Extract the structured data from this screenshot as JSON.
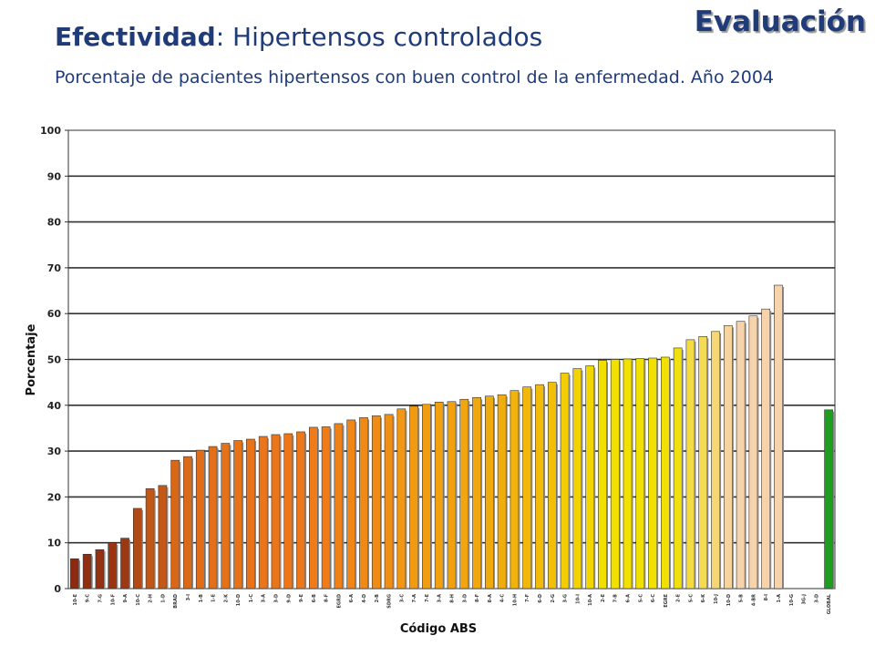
{
  "header": {
    "corner_label": "Evaluación",
    "title_bold": "Efectividad",
    "title_rest": ": Hipertensos controlados",
    "subtitle": "Porcentaje de pacientes hipertensos con buen control de la enfermedad. Año 2004"
  },
  "colors": {
    "title": "#1f3b7a",
    "gradient_start": "#8b2a12",
    "gradient_mid_orange": "#f07a1a",
    "gradient_yellow": "#f2e000",
    "gradient_end_peach": "#f7d3ac",
    "global_bar": "#1f9d1f"
  },
  "chart_data": {
    "type": "bar",
    "xlabel": "Código ABS",
    "ylabel": "Porcentaje",
    "ylim": [
      0,
      100
    ],
    "yticks": [
      "0",
      "10",
      "20",
      "30",
      "40",
      "50",
      "60",
      "70",
      "80",
      "90",
      "100"
    ],
    "grid": true,
    "categories": [
      "10-E",
      "9-C",
      "7-G",
      "10-F",
      "9-A",
      "10-C",
      "2-H",
      "1-D",
      "BRAD",
      "3-I",
      "1-B",
      "1-E",
      "2-K",
      "10-D",
      "1-C",
      "3-A",
      "3-D",
      "9-D",
      "9-E",
      "6-B",
      "8-F",
      "EGRD",
      "6-A",
      "4-D",
      "2-B",
      "SDRG",
      "3-C",
      "7-A",
      "7-E",
      "3-A",
      "8-H",
      "3-D",
      "8-F",
      "8-A",
      "4-C",
      "10-H",
      "7-F",
      "6-D",
      "2-G",
      "3-G",
      "10-I",
      "10-A",
      "2-E",
      "7-B",
      "6-A",
      "5-C",
      "6-C",
      "EGRE",
      "2-E",
      "5-C",
      "6-K",
      "10-J",
      "10-D",
      "5-B",
      "4-BR",
      "8-I",
      "1-A",
      "10-G",
      "3G-J",
      "3-D",
      "GLOBAL"
    ],
    "values": [
      6.5,
      7.5,
      8.5,
      10,
      11,
      17.5,
      21.8,
      22.5,
      28,
      28.8,
      30.2,
      31,
      31.7,
      32.3,
      32.6,
      33.2,
      33.6,
      33.8,
      34.2,
      35.2,
      35.3,
      36,
      36.8,
      37.3,
      37.7,
      38,
      39.2,
      39.8,
      40.2,
      40.7,
      40.8,
      41.3,
      41.7,
      42,
      42.3,
      43.2,
      44,
      44.5,
      45,
      47,
      48,
      48.6,
      49.8,
      50,
      50.1,
      50.2,
      50.3,
      50.5,
      52.5,
      54.3,
      55,
      56.1,
      57.4,
      58.3,
      59.5,
      61,
      66.2,
      0,
      0,
      0,
      39
    ]
  }
}
